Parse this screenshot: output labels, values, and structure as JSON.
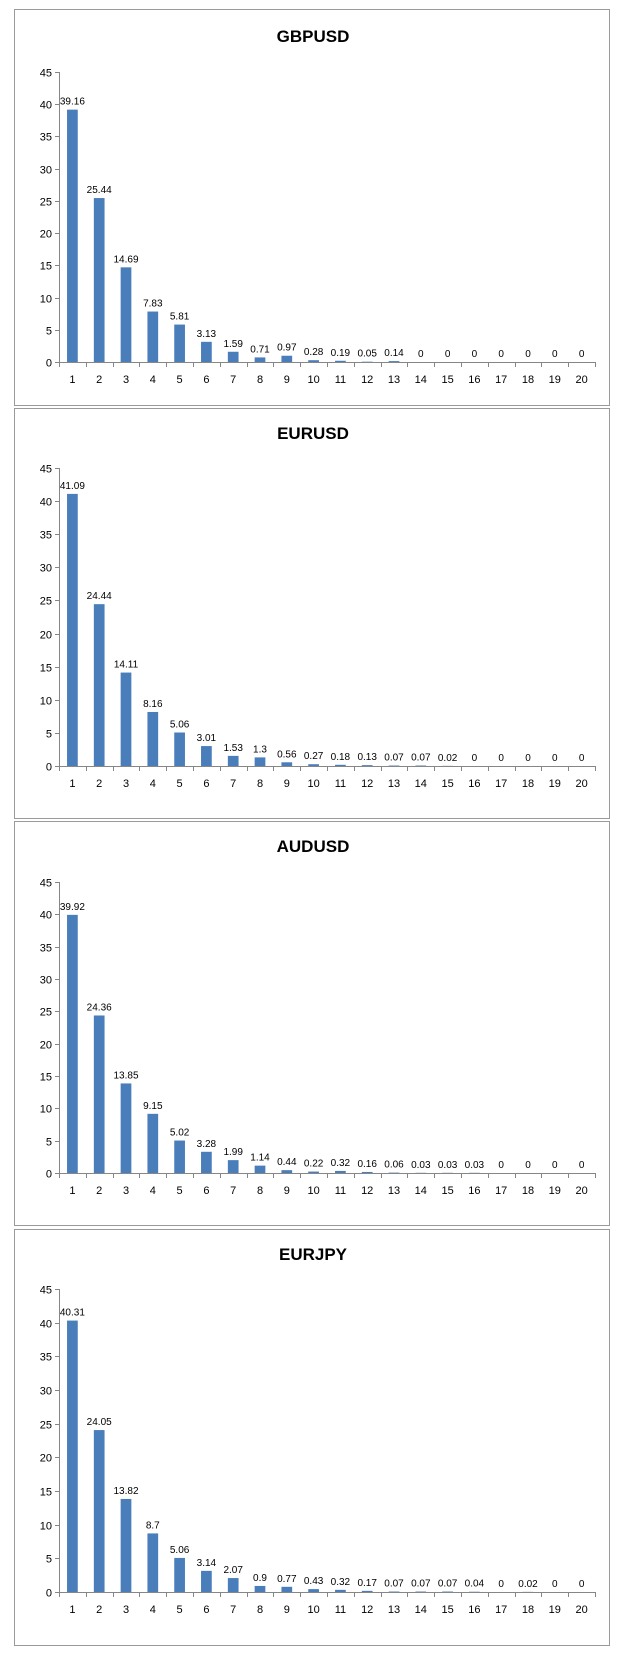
{
  "chart_data": [
    {
      "type": "bar",
      "title": "GBPUSD",
      "xlabel": "",
      "ylabel": "",
      "ylim": [
        0,
        45
      ],
      "yticks": [
        0,
        5,
        10,
        15,
        20,
        25,
        30,
        35,
        40,
        45
      ],
      "categories": [
        "1",
        "2",
        "3",
        "4",
        "5",
        "6",
        "7",
        "8",
        "9",
        "10",
        "11",
        "12",
        "13",
        "14",
        "15",
        "16",
        "17",
        "18",
        "19",
        "20"
      ],
      "values": [
        39.16,
        25.44,
        14.69,
        7.83,
        5.81,
        3.13,
        1.59,
        0.71,
        0.97,
        0.28,
        0.19,
        0.05,
        0.14,
        0,
        0,
        0,
        0,
        0,
        0,
        0
      ],
      "data_labels": [
        "39.16",
        "25.44",
        "14.69",
        "7.83",
        "5.81",
        "3.13",
        "1.59",
        "0.71",
        "0.97",
        "0.28",
        "0.19",
        "0.05",
        "0.14",
        "0",
        "0",
        "0",
        "0",
        "0",
        "0",
        "0"
      ],
      "grid": false,
      "legend": "none",
      "bar_color": "#4a7ebb"
    },
    {
      "type": "bar",
      "title": "EURUSD",
      "xlabel": "",
      "ylabel": "",
      "ylim": [
        0,
        45
      ],
      "yticks": [
        0,
        5,
        10,
        15,
        20,
        25,
        30,
        35,
        40,
        45
      ],
      "categories": [
        "1",
        "2",
        "3",
        "4",
        "5",
        "6",
        "7",
        "8",
        "9",
        "10",
        "11",
        "12",
        "13",
        "14",
        "15",
        "16",
        "17",
        "18",
        "19",
        "20"
      ],
      "values": [
        41.09,
        24.44,
        14.11,
        8.16,
        5.06,
        3.01,
        1.53,
        1.3,
        0.56,
        0.27,
        0.18,
        0.13,
        0.07,
        0.07,
        0.02,
        0,
        0,
        0,
        0,
        0
      ],
      "data_labels": [
        "41.09",
        "24.44",
        "14.11",
        "8.16",
        "5.06",
        "3.01",
        "1.53",
        "1.3",
        "0.56",
        "0.27",
        "0.18",
        "0.13",
        "0.07",
        "0.07",
        "0.02",
        "0",
        "0",
        "0",
        "0",
        "0"
      ],
      "grid": false,
      "legend": "none",
      "bar_color": "#4a7ebb"
    },
    {
      "type": "bar",
      "title": "AUDUSD",
      "xlabel": "",
      "ylabel": "",
      "ylim": [
        0,
        45
      ],
      "yticks": [
        0,
        5,
        10,
        15,
        20,
        25,
        30,
        35,
        40,
        45
      ],
      "categories": [
        "1",
        "2",
        "3",
        "4",
        "5",
        "6",
        "7",
        "8",
        "9",
        "10",
        "11",
        "12",
        "13",
        "14",
        "15",
        "16",
        "17",
        "18",
        "19",
        "20"
      ],
      "values": [
        39.92,
        24.36,
        13.85,
        9.15,
        5.02,
        3.28,
        1.99,
        1.14,
        0.44,
        0.22,
        0.32,
        0.16,
        0.06,
        0.03,
        0.03,
        0.03,
        0,
        0,
        0,
        0
      ],
      "data_labels": [
        "39.92",
        "24.36",
        "13.85",
        "9.15",
        "5.02",
        "3.28",
        "1.99",
        "1.14",
        "0.44",
        "0.22",
        "0.32",
        "0.16",
        "0.06",
        "0.03",
        "0.03",
        "0.03",
        "0",
        "0",
        "0",
        "0"
      ],
      "grid": false,
      "legend": "none",
      "bar_color": "#4a7ebb"
    },
    {
      "type": "bar",
      "title": "EURJPY",
      "xlabel": "",
      "ylabel": "",
      "ylim": [
        0,
        45
      ],
      "yticks": [
        0,
        5,
        10,
        15,
        20,
        25,
        30,
        35,
        40,
        45
      ],
      "categories": [
        "1",
        "2",
        "3",
        "4",
        "5",
        "6",
        "7",
        "8",
        "9",
        "10",
        "11",
        "12",
        "13",
        "14",
        "15",
        "16",
        "17",
        "18",
        "19",
        "20"
      ],
      "values": [
        40.31,
        24.05,
        13.82,
        8.7,
        5.06,
        3.14,
        2.07,
        0.9,
        0.77,
        0.43,
        0.32,
        0.17,
        0.07,
        0.07,
        0.07,
        0.04,
        0,
        0.02,
        0,
        0
      ],
      "data_labels": [
        "40.31",
        "24.05",
        "13.82",
        "8.7",
        "5.06",
        "3.14",
        "2.07",
        "0.9",
        "0.77",
        "0.43",
        "0.32",
        "0.17",
        "0.07",
        "0.07",
        "0.07",
        "0.04",
        "0",
        "0.02",
        "0",
        "0"
      ],
      "grid": false,
      "legend": "none",
      "bar_color": "#4a7ebb"
    }
  ]
}
